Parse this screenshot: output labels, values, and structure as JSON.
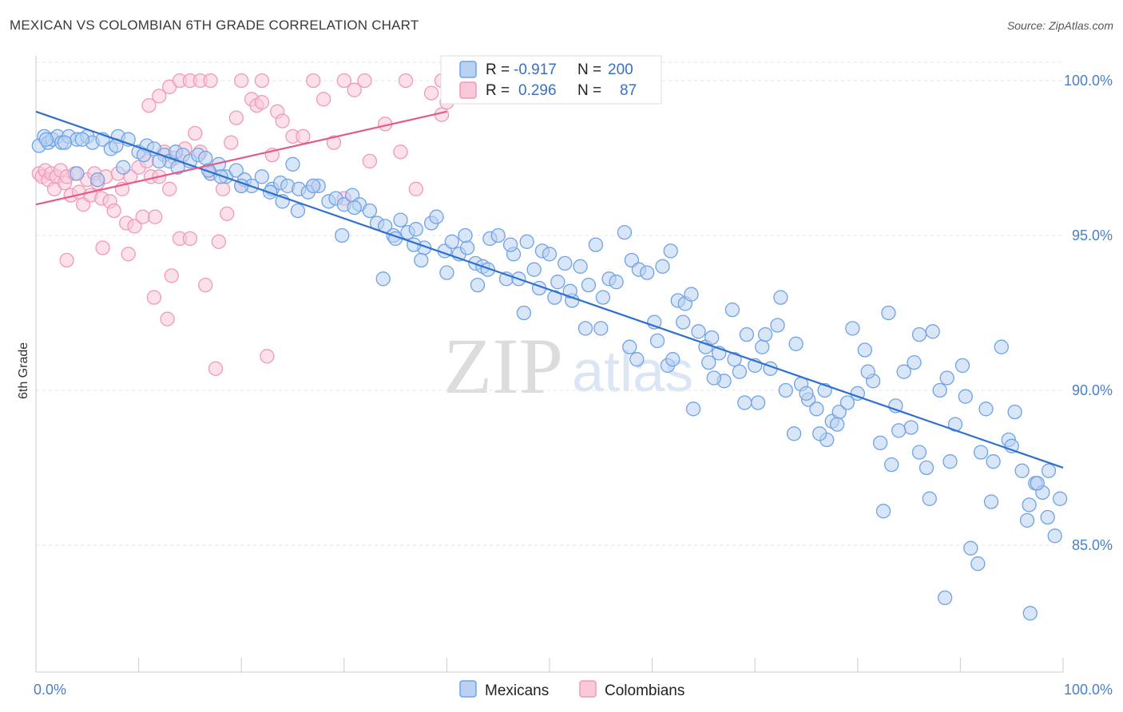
{
  "title": "MEXICAN VS COLOMBIAN 6TH GRADE CORRELATION CHART",
  "source": "Source: ZipAtlas.com",
  "watermark": {
    "zip": "ZIP",
    "atlas": "atlas"
  },
  "legend_stats": [
    {
      "r_label": "R =",
      "r_value": "-0.917",
      "n_label": "N =",
      "n_value": "200"
    },
    {
      "r_label": "R =",
      "r_value": "0.296",
      "n_label": "N =",
      "n_value": "87"
    }
  ],
  "chart_data": {
    "type": "scatter",
    "title": "MEXICAN VS COLOMBIAN 6TH GRADE CORRELATION CHART",
    "xlabel": "",
    "ylabel": "6th Grade",
    "xlim": [
      0,
      100
    ],
    "ylim": [
      80.9,
      100.8
    ],
    "x_tick_labels": [
      "0.0%",
      "100.0%"
    ],
    "y_ticks": [
      85,
      90,
      95,
      100
    ],
    "y_tick_labels": [
      "85.0%",
      "90.0%",
      "95.0%",
      "100.0%"
    ],
    "grid": true,
    "legend_position": "bottom-center",
    "series": [
      {
        "name": "Mexicans",
        "color": "#6fa3e6",
        "fill": "#b9d2f2",
        "line_color": "#2e6fd0",
        "r": -0.917,
        "n": 200,
        "trend": {
          "x": [
            0,
            100
          ],
          "y": [
            99.0,
            87.5
          ]
        },
        "points": [
          [
            0.3,
            97.9
          ],
          [
            0.8,
            98.2
          ],
          [
            1.2,
            98.0
          ],
          [
            1.6,
            98.1
          ],
          [
            2.1,
            98.2
          ],
          [
            2.5,
            98.0
          ],
          [
            3.2,
            98.2
          ],
          [
            4.0,
            98.1
          ],
          [
            5.0,
            98.2
          ],
          [
            5.5,
            98.0
          ],
          [
            6.5,
            98.1
          ],
          [
            7.3,
            97.8
          ],
          [
            8.0,
            98.2
          ],
          [
            9.0,
            98.1
          ],
          [
            10.0,
            97.7
          ],
          [
            10.8,
            97.9
          ],
          [
            11.5,
            97.8
          ],
          [
            12.5,
            97.6
          ],
          [
            13.0,
            97.4
          ],
          [
            13.6,
            97.7
          ],
          [
            14.3,
            97.6
          ],
          [
            15.0,
            97.4
          ],
          [
            15.8,
            97.6
          ],
          [
            16.5,
            97.5
          ],
          [
            4.0,
            97.0
          ],
          [
            6.0,
            96.8
          ],
          [
            8.5,
            97.2
          ],
          [
            17.0,
            97.0
          ],
          [
            17.8,
            97.3
          ],
          [
            18.5,
            96.9
          ],
          [
            19.5,
            97.1
          ],
          [
            20.3,
            96.8
          ],
          [
            21.0,
            96.6
          ],
          [
            22.0,
            96.9
          ],
          [
            23.0,
            96.5
          ],
          [
            23.8,
            96.7
          ],
          [
            24.5,
            96.6
          ],
          [
            25.0,
            97.3
          ],
          [
            25.6,
            96.5
          ],
          [
            26.5,
            96.4
          ],
          [
            27.5,
            96.6
          ],
          [
            28.5,
            96.1
          ],
          [
            29.2,
            96.2
          ],
          [
            30.0,
            96.0
          ],
          [
            30.8,
            96.3
          ],
          [
            31.5,
            96.0
          ],
          [
            32.5,
            95.8
          ],
          [
            33.2,
            95.4
          ],
          [
            34.0,
            95.3
          ],
          [
            34.8,
            95.0
          ],
          [
            35.5,
            95.5
          ],
          [
            36.2,
            95.1
          ],
          [
            37.0,
            95.2
          ],
          [
            37.8,
            94.6
          ],
          [
            38.5,
            95.4
          ],
          [
            39.0,
            95.6
          ],
          [
            39.8,
            94.5
          ],
          [
            40.5,
            94.8
          ],
          [
            41.2,
            94.4
          ],
          [
            42.0,
            94.6
          ],
          [
            42.8,
            94.1
          ],
          [
            43.5,
            94.0
          ],
          [
            44.2,
            94.9
          ],
          [
            45.0,
            95.0
          ],
          [
            45.8,
            93.6
          ],
          [
            46.5,
            94.4
          ],
          [
            47.0,
            93.6
          ],
          [
            47.8,
            94.8
          ],
          [
            48.5,
            93.9
          ],
          [
            49.3,
            94.5
          ],
          [
            50.0,
            94.4
          ],
          [
            50.8,
            93.5
          ],
          [
            51.5,
            94.1
          ],
          [
            52.2,
            92.9
          ],
          [
            53.0,
            94.0
          ],
          [
            53.8,
            93.4
          ],
          [
            54.5,
            94.7
          ],
          [
            55.2,
            93.0
          ],
          [
            55.8,
            93.6
          ],
          [
            56.5,
            93.5
          ],
          [
            57.3,
            95.1
          ],
          [
            58.0,
            94.2
          ],
          [
            58.7,
            93.9
          ],
          [
            59.5,
            93.8
          ],
          [
            60.2,
            92.2
          ],
          [
            61.0,
            94.0
          ],
          [
            61.8,
            94.5
          ],
          [
            62.5,
            92.9
          ],
          [
            63.2,
            92.8
          ],
          [
            63.8,
            93.1
          ],
          [
            64.5,
            91.9
          ],
          [
            65.2,
            91.4
          ],
          [
            65.8,
            91.7
          ],
          [
            66.5,
            91.2
          ],
          [
            67.0,
            90.3
          ],
          [
            67.8,
            92.6
          ],
          [
            68.5,
            90.6
          ],
          [
            69.2,
            91.8
          ],
          [
            70.0,
            90.8
          ],
          [
            70.7,
            91.4
          ],
          [
            71.5,
            90.7
          ],
          [
            72.2,
            92.1
          ],
          [
            73.0,
            90.0
          ],
          [
            73.8,
            88.6
          ],
          [
            74.5,
            90.2
          ],
          [
            75.2,
            89.7
          ],
          [
            76.0,
            89.4
          ],
          [
            76.8,
            90.0
          ],
          [
            77.5,
            89.0
          ],
          [
            78.2,
            89.3
          ],
          [
            79.0,
            89.6
          ],
          [
            80.0,
            89.9
          ],
          [
            80.7,
            91.3
          ],
          [
            81.5,
            90.3
          ],
          [
            82.2,
            88.3
          ],
          [
            83.0,
            92.5
          ],
          [
            83.7,
            89.5
          ],
          [
            84.5,
            90.6
          ],
          [
            85.2,
            88.8
          ],
          [
            86.0,
            91.8
          ],
          [
            86.7,
            87.5
          ],
          [
            87.3,
            91.9
          ],
          [
            88.0,
            90.0
          ],
          [
            88.7,
            90.4
          ],
          [
            89.5,
            88.9
          ],
          [
            90.2,
            90.8
          ],
          [
            91.0,
            84.9
          ],
          [
            91.7,
            84.4
          ],
          [
            92.5,
            89.4
          ],
          [
            93.2,
            87.7
          ],
          [
            94.0,
            91.4
          ],
          [
            94.7,
            88.4
          ],
          [
            95.3,
            89.3
          ],
          [
            96.0,
            87.4
          ],
          [
            96.7,
            86.3
          ],
          [
            97.3,
            87.0
          ],
          [
            98.0,
            86.7
          ],
          [
            98.6,
            87.4
          ],
          [
            99.2,
            85.3
          ],
          [
            99.7,
            86.5
          ],
          [
            12.0,
            97.4
          ],
          [
            18.0,
            96.9
          ],
          [
            27.0,
            96.6
          ],
          [
            35.0,
            94.9
          ],
          [
            44.0,
            93.9
          ],
          [
            52.0,
            93.2
          ],
          [
            60.5,
            91.6
          ],
          [
            69.0,
            89.6
          ],
          [
            78.0,
            88.9
          ],
          [
            86.0,
            88.0
          ],
          [
            93.0,
            86.4
          ],
          [
            97.5,
            87.0
          ],
          [
            66.0,
            90.4
          ],
          [
            71.0,
            91.8
          ],
          [
            75.0,
            89.9
          ],
          [
            81.0,
            90.6
          ],
          [
            84.0,
            88.7
          ],
          [
            89.0,
            87.7
          ],
          [
            95.0,
            88.2
          ],
          [
            98.5,
            85.9
          ],
          [
            61.5,
            90.8
          ],
          [
            64.0,
            89.4
          ],
          [
            72.5,
            93.0
          ],
          [
            77.0,
            88.4
          ],
          [
            82.5,
            86.1
          ],
          [
            87.0,
            86.5
          ],
          [
            92.0,
            88.0
          ],
          [
            96.5,
            85.8
          ],
          [
            88.5,
            83.3
          ],
          [
            96.8,
            82.8
          ],
          [
            90.5,
            89.8
          ],
          [
            85.5,
            90.9
          ],
          [
            79.5,
            92.0
          ],
          [
            74.0,
            91.5
          ],
          [
            68.0,
            91.0
          ],
          [
            63.0,
            92.2
          ],
          [
            58.5,
            91.0
          ],
          [
            55.0,
            92.0
          ],
          [
            50.5,
            93.0
          ],
          [
            47.5,
            92.5
          ],
          [
            43.0,
            93.4
          ],
          [
            40.0,
            93.8
          ],
          [
            37.5,
            94.2
          ],
          [
            33.8,
            93.6
          ],
          [
            29.8,
            95.0
          ],
          [
            25.5,
            95.8
          ],
          [
            22.8,
            96.4
          ],
          [
            20.0,
            96.6
          ],
          [
            16.8,
            97.1
          ],
          [
            13.8,
            97.2
          ],
          [
            10.5,
            97.6
          ],
          [
            7.8,
            97.9
          ],
          [
            4.5,
            98.1
          ],
          [
            2.8,
            98.0
          ],
          [
            1.0,
            98.1
          ],
          [
            24.0,
            96.1
          ],
          [
            31.0,
            95.9
          ],
          [
            36.8,
            94.7
          ],
          [
            41.8,
            95.0
          ],
          [
            46.2,
            94.7
          ],
          [
            49.0,
            93.3
          ],
          [
            53.5,
            92.0
          ],
          [
            57.8,
            91.4
          ],
          [
            62.0,
            91.0
          ],
          [
            65.5,
            90.9
          ],
          [
            70.3,
            89.6
          ],
          [
            76.3,
            88.6
          ],
          [
            83.3,
            87.6
          ]
        ]
      },
      {
        "name": "Colombians",
        "color": "#ef9ab6",
        "fill": "#f9c9d9",
        "line_color": "#e45a8a",
        "r": 0.296,
        "n": 87,
        "trend": {
          "x": [
            0,
            40
          ],
          "y": [
            96.0,
            99.0
          ]
        },
        "points": [
          [
            0.3,
            97.0
          ],
          [
            0.6,
            96.9
          ],
          [
            0.9,
            97.1
          ],
          [
            1.2,
            96.8
          ],
          [
            1.5,
            97.0
          ],
          [
            1.8,
            96.5
          ],
          [
            2.0,
            96.9
          ],
          [
            2.4,
            97.1
          ],
          [
            2.8,
            96.7
          ],
          [
            3.0,
            96.9
          ],
          [
            3.4,
            96.3
          ],
          [
            3.8,
            97.0
          ],
          [
            4.2,
            96.4
          ],
          [
            4.6,
            96.0
          ],
          [
            5.0,
            96.8
          ],
          [
            5.3,
            96.3
          ],
          [
            5.7,
            97.0
          ],
          [
            6.0,
            96.7
          ],
          [
            6.4,
            96.2
          ],
          [
            6.8,
            96.9
          ],
          [
            7.2,
            96.1
          ],
          [
            7.6,
            95.8
          ],
          [
            8.0,
            97.0
          ],
          [
            8.4,
            96.5
          ],
          [
            8.8,
            95.4
          ],
          [
            9.2,
            96.9
          ],
          [
            9.6,
            95.3
          ],
          [
            10.0,
            97.2
          ],
          [
            10.4,
            95.6
          ],
          [
            10.8,
            97.4
          ],
          [
            11.2,
            96.9
          ],
          [
            11.6,
            95.6
          ],
          [
            12.0,
            96.9
          ],
          [
            12.5,
            97.7
          ],
          [
            13.0,
            96.5
          ],
          [
            13.5,
            97.5
          ],
          [
            14.0,
            94.9
          ],
          [
            14.5,
            97.8
          ],
          [
            15.0,
            94.9
          ],
          [
            15.5,
            98.3
          ],
          [
            16.0,
            97.7
          ],
          [
            17.0,
            97.0
          ],
          [
            17.8,
            94.8
          ],
          [
            18.2,
            96.5
          ],
          [
            18.6,
            95.7
          ],
          [
            19.0,
            98.0
          ],
          [
            19.5,
            98.8
          ],
          [
            20.0,
            96.6
          ],
          [
            21.0,
            99.4
          ],
          [
            21.5,
            99.2
          ],
          [
            22.0,
            99.3
          ],
          [
            23.0,
            97.6
          ],
          [
            23.5,
            99.0
          ],
          [
            24.0,
            98.7
          ],
          [
            25.0,
            98.2
          ],
          [
            26.0,
            98.2
          ],
          [
            27.0,
            96.6
          ],
          [
            28.0,
            99.4
          ],
          [
            29.0,
            98.0
          ],
          [
            30.0,
            96.2
          ],
          [
            31.0,
            99.7
          ],
          [
            32.5,
            97.4
          ],
          [
            34.0,
            98.6
          ],
          [
            35.5,
            97.7
          ],
          [
            37.0,
            96.5
          ],
          [
            38.5,
            99.6
          ],
          [
            39.5,
            98.9
          ],
          [
            40.0,
            99.3
          ],
          [
            11.0,
            99.2
          ],
          [
            12.0,
            99.5
          ],
          [
            13.0,
            99.8
          ],
          [
            14.0,
            100.0
          ],
          [
            15.0,
            100.0
          ],
          [
            16.0,
            100.0
          ],
          [
            17.0,
            100.0
          ],
          [
            20.0,
            100.0
          ],
          [
            22.0,
            100.0
          ],
          [
            27.0,
            100.0
          ],
          [
            30.0,
            100.0
          ],
          [
            32.0,
            100.0
          ],
          [
            36.0,
            100.0
          ],
          [
            39.5,
            100.0
          ],
          [
            3.0,
            94.2
          ],
          [
            6.5,
            94.6
          ],
          [
            9.0,
            94.4
          ],
          [
            11.5,
            93.0
          ],
          [
            12.8,
            92.3
          ],
          [
            16.5,
            93.4
          ],
          [
            17.5,
            90.7
          ],
          [
            22.5,
            91.1
          ],
          [
            13.2,
            93.7
          ]
        ]
      }
    ]
  }
}
